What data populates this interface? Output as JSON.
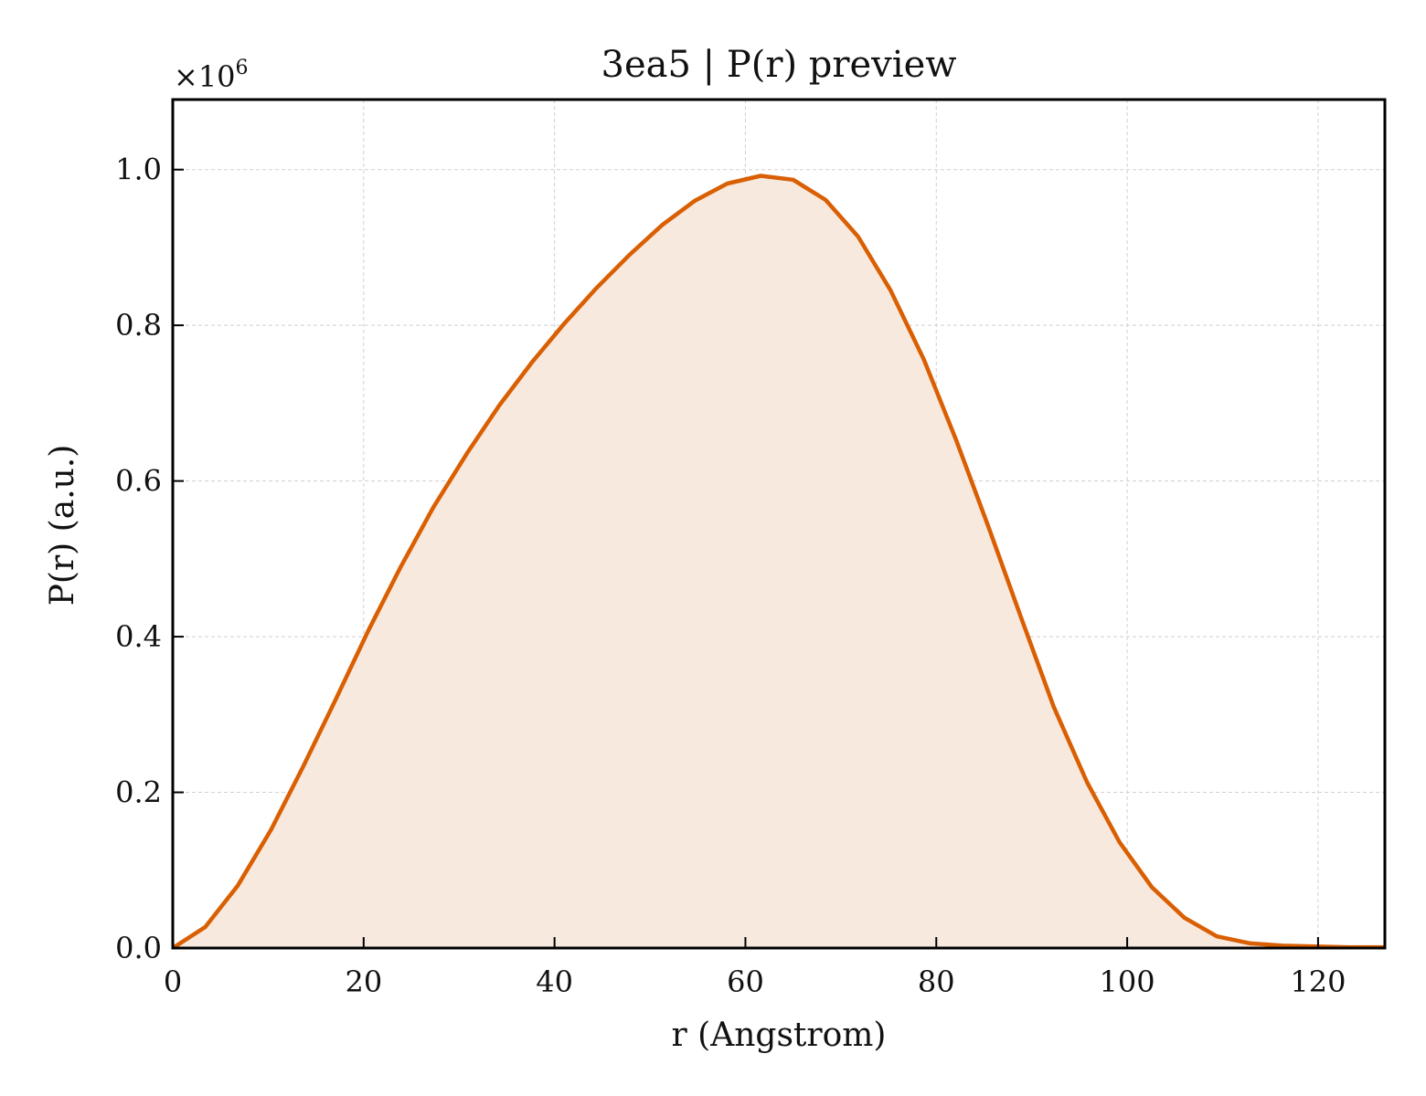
{
  "chart_data": {
    "type": "area",
    "title": "3ea5 | P(r) preview",
    "xlabel": "r (Angstrom)",
    "ylabel": "P(r) (a.u.)",
    "y_multiplier_base": "×10",
    "y_multiplier_exp": "6",
    "xlim": [
      0,
      127
    ],
    "ylim": [
      0,
      1.09
    ],
    "xticks": [
      0,
      20,
      40,
      60,
      80,
      100,
      120
    ],
    "xtick_labels": [
      "0",
      "20",
      "40",
      "60",
      "80",
      "100",
      "120"
    ],
    "yticks": [
      0.0,
      0.2,
      0.4,
      0.6,
      0.8,
      1.0
    ],
    "ytick_labels": [
      "0.0",
      "0.2",
      "0.4",
      "0.6",
      "0.8",
      "1.0"
    ],
    "grid": true,
    "line_color": "#d95f02",
    "fill_color": "#f8e9df",
    "series": [
      {
        "x": [
          0,
          3.4,
          6.8,
          10.3,
          13.7,
          17.1,
          20.5,
          23.9,
          27.3,
          30.8,
          34.2,
          37.6,
          41.0,
          44.4,
          47.9,
          51.3,
          54.7,
          58.1,
          61.6,
          65.0,
          68.4,
          71.8,
          75.2,
          78.7,
          82.1,
          85.5,
          88.9,
          92.3,
          95.8,
          99.2,
          102.6,
          106.0,
          109.4,
          112.9,
          116.3,
          119.7,
          123.1,
          127.0
        ],
        "y": [
          0.0,
          0.027,
          0.08,
          0.152,
          0.234,
          0.32,
          0.408,
          0.49,
          0.566,
          0.635,
          0.697,
          0.752,
          0.802,
          0.848,
          0.891,
          0.929,
          0.96,
          0.982,
          0.992,
          0.987,
          0.961,
          0.914,
          0.845,
          0.756,
          0.652,
          0.54,
          0.424,
          0.31,
          0.213,
          0.136,
          0.078,
          0.039,
          0.015,
          0.006,
          0.003,
          0.002,
          0.001,
          0.001
        ]
      }
    ]
  }
}
